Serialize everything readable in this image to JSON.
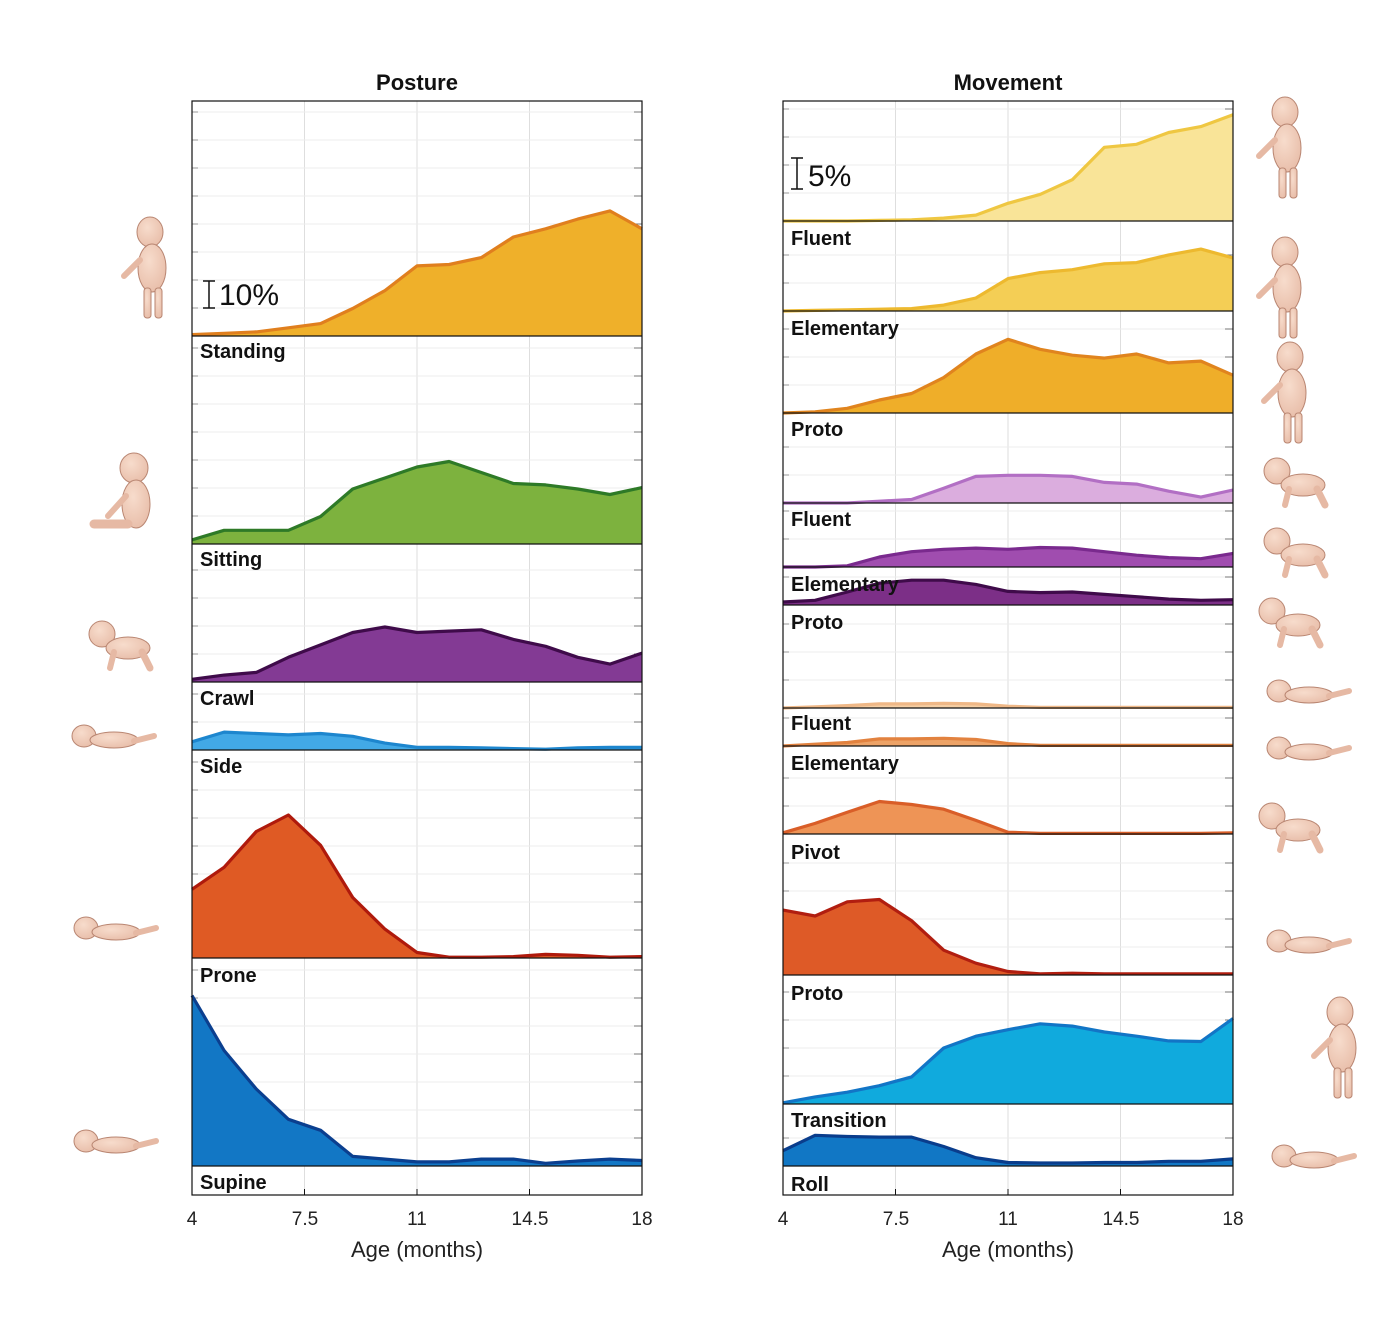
{
  "colors": {
    "standing": "#EFB02A",
    "standing_line": "#E07F1E",
    "sitting": "#7DB23E",
    "sitting_line": "#2E7A27",
    "crawl": "#833A94",
    "crawl_line": "#3F0B4A",
    "side": "#42A9E6",
    "side_line": "#1D86CE",
    "prone": "#DF5A24",
    "prone_line": "#AF1A0C",
    "supine": "#1277C5",
    "supine_line": "#0B3F8F",
    "walk_fluent": "#F9E498",
    "walk_fluent_line": "#EFC742",
    "walk_elem": "#F4CE55",
    "walk_elem_line": "#EDB92F",
    "walk_proto": "#EFAE29",
    "walk_proto_line": "#E0841E",
    "crawl_fluent": "#DBADDE",
    "crawl_fluent_line": "#B26FC4",
    "crawl_elem": "#A04DAF",
    "crawl_elem_line": "#7A2A8E",
    "crawl_proto": "#7C2F87",
    "crawl_proto_line": "#3F0B4A",
    "comm_fluent": "#F6CFA4",
    "comm_fluent_line": "#EFB887",
    "comm_elem": "#EDA367",
    "comm_elem_line": "#E2823F",
    "pivot": "#EE9456",
    "pivot_line": "#D95E28",
    "mproto": "#DE5A27",
    "mproto_line": "#B11E10",
    "transition": "#10AADD",
    "transition_line": "#1275C6",
    "roll": "#1177C5",
    "roll_line": "#0A3D8C"
  },
  "chart_data": [
    {
      "type": "area",
      "title": "Posture",
      "xlabel": "Age (months)",
      "xticks": [
        "4",
        "7.5",
        "11",
        "14.5",
        "18"
      ],
      "xlim": [
        4,
        18
      ],
      "scale_bar": "10%",
      "x": [
        4,
        5,
        6,
        7,
        8,
        9,
        10,
        11,
        12,
        13,
        14,
        15,
        16,
        17,
        18
      ],
      "series": [
        {
          "name": "Standing",
          "color_key": "standing",
          "values": [
            0.5,
            1,
            1.5,
            3,
            4.5,
            10,
            16.5,
            25.5,
            26,
            28.5,
            36,
            39,
            42.5,
            45.5,
            39
          ]
        },
        {
          "name": "Sitting",
          "color_key": "sitting",
          "values": [
            1.5,
            5,
            5,
            5,
            10,
            20,
            24,
            28,
            30,
            26,
            22,
            21.5,
            20,
            18,
            20.5
          ]
        },
        {
          "name": "Crawl",
          "color_key": "crawl",
          "values": [
            1,
            2.5,
            3.5,
            9,
            13.5,
            18,
            20,
            18,
            18.5,
            19,
            15.5,
            13,
            9,
            6.5,
            10.5
          ]
        },
        {
          "name": "Side",
          "color_key": "side",
          "values": [
            3,
            6.5,
            6,
            5.5,
            6,
            5,
            2.5,
            1,
            1,
            0.8,
            0.5,
            0.3,
            0.8,
            1,
            1
          ]
        },
        {
          "name": "Prone",
          "color_key": "prone",
          "values": [
            25,
            33,
            46,
            52,
            41,
            22,
            10.5,
            2,
            0.3,
            0.3,
            0.5,
            1.3,
            1,
            0.3,
            0.5
          ]
        },
        {
          "name": "Supine",
          "color_key": "supine",
          "values": [
            62,
            42,
            28,
            17,
            13,
            3.5,
            2.5,
            1.5,
            1.5,
            2.5,
            2.5,
            1,
            1.8,
            2.5,
            2
          ]
        }
      ]
    },
    {
      "type": "area",
      "title": "Movement",
      "xlabel": "Age (months)",
      "xticks": [
        "4",
        "7.5",
        "11",
        "14.5",
        "18"
      ],
      "xlim": [
        4,
        18
      ],
      "scale_bar": "5%",
      "x": [
        4,
        5,
        6,
        7,
        8,
        9,
        10,
        11,
        12,
        13,
        14,
        15,
        16,
        17,
        18
      ],
      "series": [
        {
          "name": "Fluent",
          "group": "walk",
          "color_key": "walk_fluent",
          "values": [
            0,
            0,
            0,
            0.1,
            0.2,
            0.5,
            1,
            3,
            4.5,
            7,
            12.5,
            13,
            15,
            16,
            18
          ]
        },
        {
          "name": "Elementary",
          "group": "walk",
          "color_key": "walk_elem",
          "values": [
            0,
            0.1,
            0.2,
            0.3,
            0.4,
            1,
            2.2,
            5.5,
            6.5,
            7,
            8,
            8.2,
            9.5,
            10.5,
            9
          ]
        },
        {
          "name": "Proto",
          "group": "walk",
          "color_key": "walk_proto",
          "values": [
            0,
            0.2,
            0.8,
            2.2,
            3.3,
            6,
            10,
            12.5,
            10.8,
            9.8,
            9.3,
            10,
            8.5,
            8.8,
            6.4
          ]
        },
        {
          "name": "Fluent",
          "group": "crawl",
          "color_key": "crawl_fluent",
          "values": [
            0,
            0,
            0,
            0.3,
            0.6,
            2.5,
            4.5,
            4.7,
            4.7,
            4.5,
            3.5,
            3.2,
            2,
            1,
            2.2
          ]
        },
        {
          "name": "Elementary",
          "group": "crawl",
          "color_key": "crawl_elem",
          "values": [
            0,
            0,
            0.2,
            1.7,
            2.6,
            3,
            3.2,
            3,
            3.3,
            3.2,
            2.6,
            2,
            1.6,
            1.4,
            2.3
          ]
        },
        {
          "name": "Proto",
          "group": "crawl",
          "color_key": "crawl_proto",
          "values": [
            0.5,
            0.8,
            2.2,
            3.7,
            4.2,
            4.2,
            3.5,
            2.3,
            2.1,
            2.2,
            1.8,
            1.4,
            1,
            0.8,
            0.9
          ]
        },
        {
          "name": "Fluent",
          "group": "commando",
          "color_key": "comm_fluent",
          "values": [
            0,
            0.2,
            0.4,
            0.7,
            0.7,
            0.8,
            0.7,
            0.3,
            0.1,
            0.1,
            0.1,
            0.1,
            0.1,
            0.1,
            0.1
          ]
        },
        {
          "name": "Elementary",
          "group": "commando",
          "color_key": "comm_elem",
          "values": [
            0,
            0.3,
            0.6,
            1.2,
            1.2,
            1.3,
            1.1,
            0.4,
            0.1,
            0.1,
            0.1,
            0.1,
            0.1,
            0.1,
            0.1
          ]
        },
        {
          "name": "Pivot",
          "color_key": "pivot",
          "values": [
            0.2,
            1.8,
            3.7,
            5.5,
            5,
            4.2,
            2.3,
            0.3,
            0.1,
            0.1,
            0.1,
            0.1,
            0.1,
            0.1,
            0.2
          ]
        },
        {
          "name": "Proto",
          "group": "mobility",
          "color_key": "mproto",
          "values": [
            11,
            10,
            12.4,
            12.8,
            9.2,
            4.2,
            2,
            0.6,
            0.2,
            0.3,
            0.2,
            0.2,
            0.2,
            0.2,
            0.2
          ]
        },
        {
          "name": "Transition",
          "color_key": "transition",
          "values": [
            0.2,
            1.2,
            2,
            3.1,
            4.6,
            9.5,
            11.5,
            12.6,
            13.6,
            13.2,
            12.2,
            11.5,
            10.7,
            10.6,
            14.5
          ]
        },
        {
          "name": "Roll",
          "color_key": "roll",
          "values": [
            2.6,
            5.2,
            5,
            4.9,
            4.9,
            3.3,
            1.4,
            0.6,
            0.5,
            0.5,
            0.6,
            0.6,
            0.8,
            0.8,
            1.2
          ]
        }
      ]
    }
  ]
}
